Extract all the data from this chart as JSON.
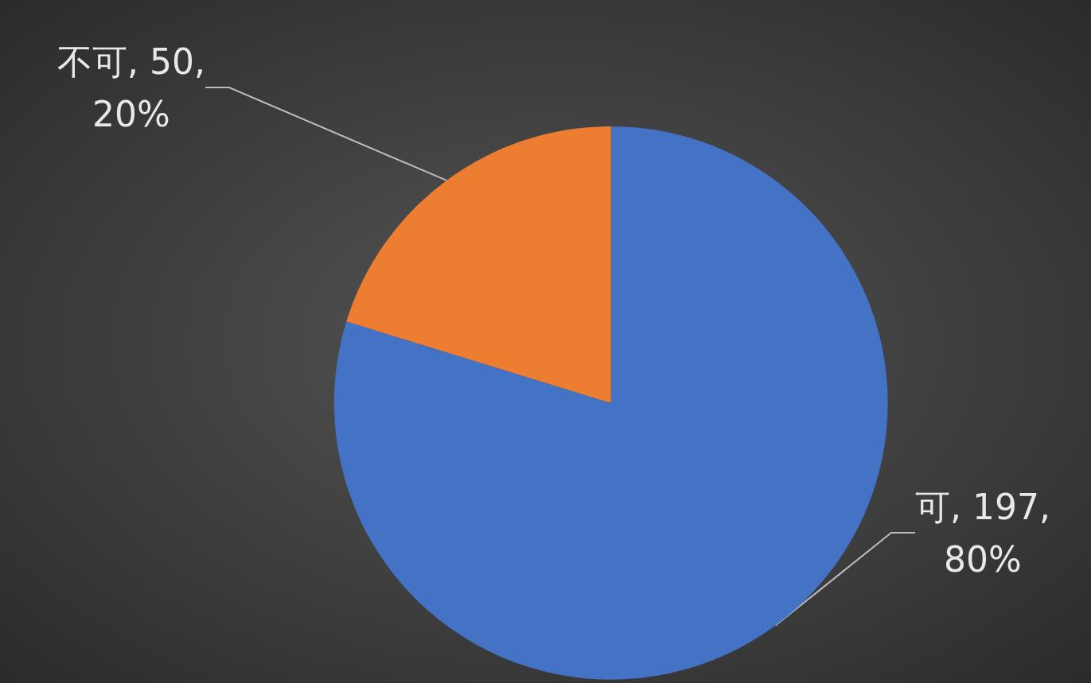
{
  "chart_data": {
    "type": "pie",
    "categories": [
      "可",
      "不可"
    ],
    "values": [
      197,
      50
    ],
    "colors": [
      "#4472c4",
      "#ed7d31"
    ],
    "value_labels": [
      "197, 80%",
      "50, 20%"
    ]
  }
}
